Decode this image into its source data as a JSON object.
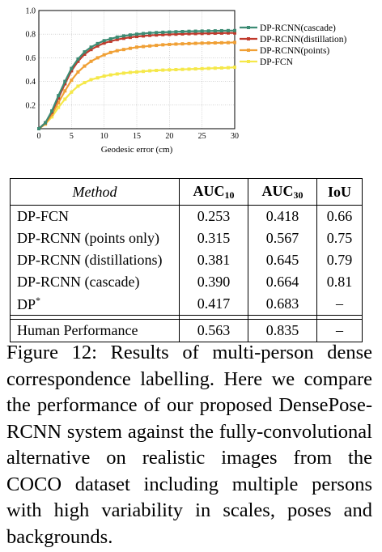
{
  "chart_data": {
    "type": "line",
    "xlabel": "Geodesic error (cm)",
    "ylabel": "",
    "xlim": [
      0,
      30
    ],
    "ylim": [
      0,
      1.0
    ],
    "x_ticks": [
      "0",
      "5",
      "10",
      "15",
      "20",
      "25",
      "30"
    ],
    "y_ticks": [
      "0.2",
      "0.4",
      "0.6",
      "0.8",
      "1.0"
    ],
    "grid": true,
    "legend_position": "right",
    "x": [
      0,
      1,
      2,
      3,
      4,
      5,
      6,
      7,
      8,
      9,
      10,
      11,
      12,
      13,
      14,
      15,
      16,
      17,
      18,
      19,
      20,
      21,
      22,
      23,
      24,
      25,
      26,
      27,
      28,
      29,
      30
    ],
    "series": [
      {
        "name": "DP-RCNN(cascade)",
        "color": "#3d8c74",
        "values": [
          0.0,
          0.05,
          0.15,
          0.28,
          0.4,
          0.51,
          0.59,
          0.65,
          0.69,
          0.72,
          0.745,
          0.76,
          0.775,
          0.785,
          0.793,
          0.8,
          0.805,
          0.81,
          0.813,
          0.816,
          0.818,
          0.82,
          0.822,
          0.824,
          0.825,
          0.826,
          0.827,
          0.828,
          0.829,
          0.83,
          0.83
        ]
      },
      {
        "name": "DP-RCNN(distillation)",
        "color": "#c0392b",
        "values": [
          0.0,
          0.05,
          0.14,
          0.26,
          0.38,
          0.49,
          0.57,
          0.63,
          0.67,
          0.7,
          0.725,
          0.74,
          0.755,
          0.765,
          0.773,
          0.78,
          0.785,
          0.79,
          0.793,
          0.796,
          0.798,
          0.8,
          0.802,
          0.804,
          0.805,
          0.806,
          0.807,
          0.808,
          0.809,
          0.81,
          0.81
        ]
      },
      {
        "name": "DP-RCNN(points)",
        "color": "#f0a035",
        "values": [
          0.0,
          0.04,
          0.12,
          0.22,
          0.32,
          0.41,
          0.48,
          0.53,
          0.57,
          0.6,
          0.625,
          0.645,
          0.66,
          0.67,
          0.68,
          0.69,
          0.695,
          0.7,
          0.705,
          0.71,
          0.713,
          0.716,
          0.718,
          0.72,
          0.722,
          0.724,
          0.725,
          0.726,
          0.727,
          0.728,
          0.73
        ]
      },
      {
        "name": "DP-FCN",
        "color": "#f5e84a",
        "values": [
          0.0,
          0.04,
          0.1,
          0.18,
          0.25,
          0.31,
          0.36,
          0.39,
          0.415,
          0.43,
          0.445,
          0.455,
          0.463,
          0.47,
          0.476,
          0.48,
          0.485,
          0.49,
          0.493,
          0.496,
          0.498,
          0.5,
          0.502,
          0.504,
          0.506,
          0.508,
          0.51,
          0.512,
          0.514,
          0.516,
          0.52
        ]
      }
    ]
  },
  "table": {
    "headers": {
      "method": "Method",
      "auc10": "AUC",
      "auc10_sub": "10",
      "auc30": "AUC",
      "auc30_sub": "30",
      "iou": "IoU"
    },
    "rows": [
      {
        "method": "DP-FCN",
        "auc10": "0.253",
        "auc30": "0.418",
        "iou": "0.66"
      },
      {
        "method": "DP-RCNN (points only)",
        "auc10": "0.315",
        "auc30": "0.567",
        "iou": "0.75"
      },
      {
        "method": "DP-RCNN (distillations)",
        "auc10": "0.381",
        "auc30": "0.645",
        "iou": "0.79"
      },
      {
        "method": "DP-RCNN (cascade)",
        "auc10": "0.390",
        "auc30": "0.664",
        "iou": "0.81"
      },
      {
        "method": "DP",
        "method_sup": "*",
        "auc10": "0.417",
        "auc30": "0.683",
        "iou": "–"
      }
    ],
    "human": {
      "method": "Human Performance",
      "auc10": "0.563",
      "auc30": "0.835",
      "iou": "–"
    }
  },
  "caption": "Figure 12: Results of multi-person dense correspondence labelling. Here we compare the performance of our proposed DensePose-RCNN system against the fully-convolutional alternative on realistic images from the COCO dataset including multiple persons with high variability in scales, poses and backgrounds."
}
